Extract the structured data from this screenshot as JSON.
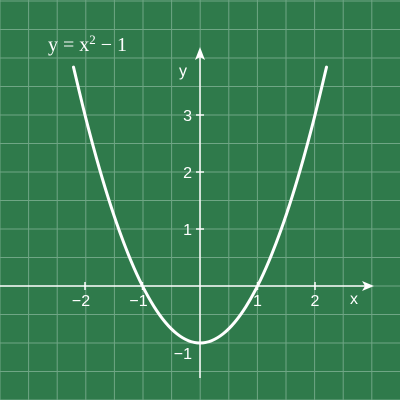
{
  "chart_data": {
    "type": "line",
    "title": "y = x",
    "title_exponent": "2",
    "title_suffix": " − 1",
    "xlabel": "x",
    "ylabel": "y",
    "xlim": [
      -3.5,
      3.5
    ],
    "ylim": [
      -1.6,
      4.0
    ],
    "grid": true,
    "x_ticks": [
      {
        "value": -2,
        "label": "−2"
      },
      {
        "value": -1,
        "label": "−1"
      },
      {
        "value": 1,
        "label": "1"
      },
      {
        "value": 2,
        "label": "2"
      }
    ],
    "y_ticks": [
      {
        "value": -1,
        "label": "−1"
      },
      {
        "value": 1,
        "label": "1"
      },
      {
        "value": 2,
        "label": "2"
      },
      {
        "value": 3,
        "label": "3"
      }
    ],
    "series": [
      {
        "x": [
          -2.2,
          -2.0,
          -1.8,
          -1.6,
          -1.4,
          -1.2,
          -1.0,
          -0.8,
          -0.6,
          -0.4,
          -0.2,
          0.0,
          0.2,
          0.4,
          0.6,
          0.8,
          1.0,
          1.2,
          1.4,
          1.6,
          1.8,
          2.0,
          2.2
        ],
        "y": [
          3.84,
          3.0,
          2.24,
          1.56,
          0.96,
          0.44,
          0.0,
          -0.36,
          -0.64,
          -0.84,
          -0.96,
          -1.0,
          -0.96,
          -0.84,
          -0.64,
          -0.36,
          0.0,
          0.44,
          0.96,
          1.56,
          2.24,
          3.0,
          3.84
        ]
      }
    ],
    "colors": {
      "background": "#2f7a4b",
      "grid": "#6fa685",
      "axis": "#ffffff",
      "curve": "#ffffff",
      "text": "#ffffff"
    }
  }
}
